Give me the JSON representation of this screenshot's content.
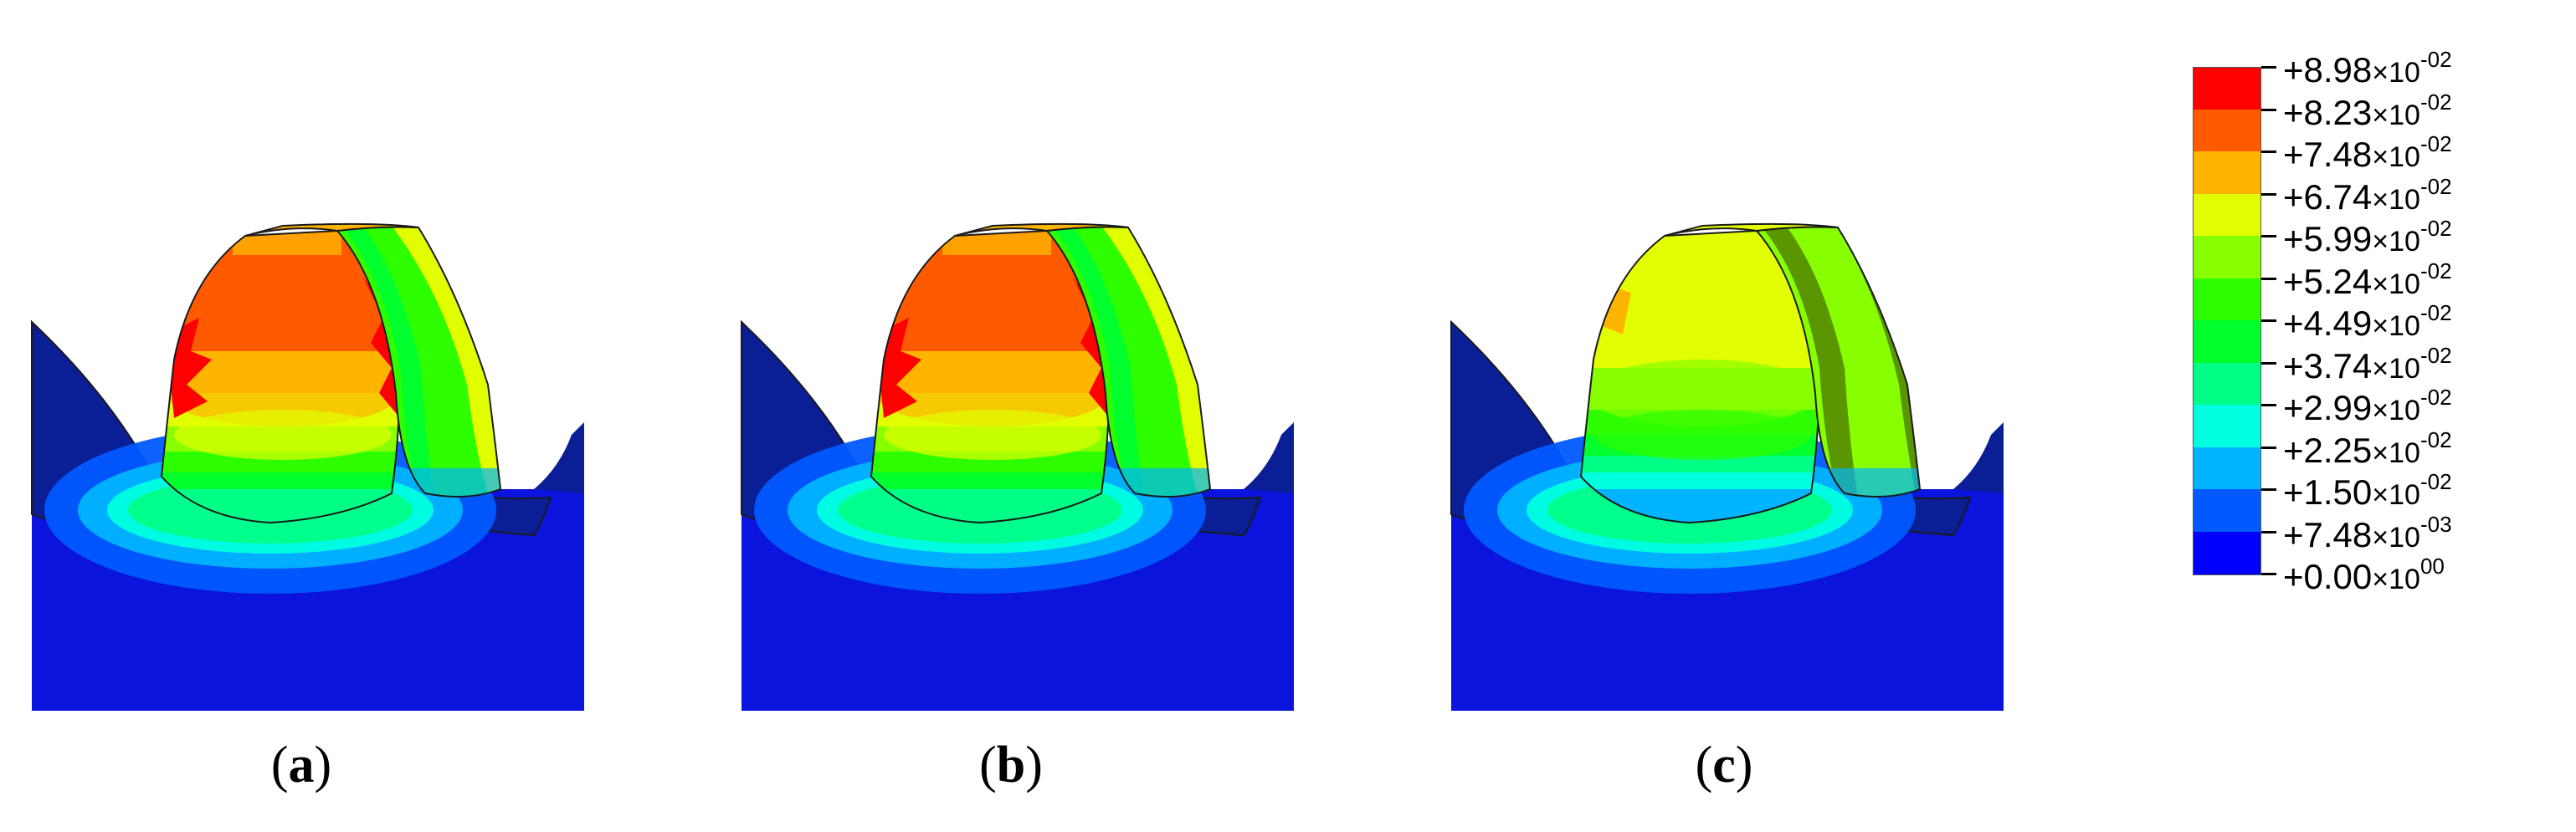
{
  "panels": [
    {
      "label": "a",
      "palette": "high"
    },
    {
      "label": "b",
      "palette": "high"
    },
    {
      "label": "c",
      "palette": "low"
    }
  ],
  "legend": {
    "entries": [
      {
        "mantissa": "+8.98",
        "exp": "-02",
        "color": "#ff0000"
      },
      {
        "mantissa": "+8.23",
        "exp": "-02",
        "color": "#ff5a00"
      },
      {
        "mantissa": "+7.48",
        "exp": "-02",
        "color": "#ffb400"
      },
      {
        "mantissa": "+6.74",
        "exp": "-02",
        "color": "#e1ff00"
      },
      {
        "mantissa": "+5.99",
        "exp": "-02",
        "color": "#87ff00"
      },
      {
        "mantissa": "+5.24",
        "exp": "-02",
        "color": "#2dff00"
      },
      {
        "mantissa": "+4.49",
        "exp": "-02",
        "color": "#00ff2d"
      },
      {
        "mantissa": "+3.74",
        "exp": "-02",
        "color": "#00ff87"
      },
      {
        "mantissa": "+2.99",
        "exp": "-02",
        "color": "#00ffe1"
      },
      {
        "mantissa": "+2.25",
        "exp": "-02",
        "color": "#00b4ff"
      },
      {
        "mantissa": "+1.50",
        "exp": "-02",
        "color": "#005aff"
      },
      {
        "mantissa": "+7.48",
        "exp": "-03",
        "color": "#0000ff"
      },
      {
        "mantissa": "+0.00",
        "exp": "00",
        "color": null
      }
    ],
    "multiplier": "×10"
  },
  "colors": {
    "base_blue": "#0a14dc",
    "navy": "#0a1e96",
    "outline": "#1a1a1a"
  }
}
